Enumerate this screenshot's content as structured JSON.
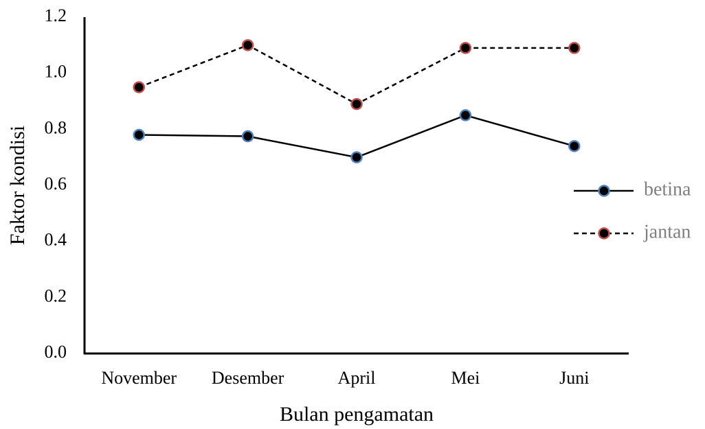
{
  "chart_data": {
    "type": "line",
    "xlabel": "Bulan pengamatan",
    "ylabel": "Faktor kondisi",
    "categories": [
      "November",
      "Desember",
      "April",
      "Mei",
      "Juni"
    ],
    "series": [
      {
        "name": "betina",
        "color": "#000000",
        "marker_edge": "#4f81bd",
        "line_style": "solid",
        "values": [
          0.78,
          0.775,
          0.7,
          0.85,
          0.74
        ]
      },
      {
        "name": "jantan",
        "color": "#000000",
        "marker_edge": "#c0504d",
        "line_style": "dashed",
        "values": [
          0.95,
          1.1,
          0.89,
          1.09,
          1.09
        ]
      }
    ],
    "ylim": [
      0,
      1.2
    ],
    "yticks": [
      {
        "value": 0,
        "label": "0.0"
      },
      0.2,
      0.4,
      0.6,
      0.8,
      {
        "value": 1,
        "label": "1.0"
      },
      1.2
    ],
    "grid": false,
    "legend": "right"
  }
}
